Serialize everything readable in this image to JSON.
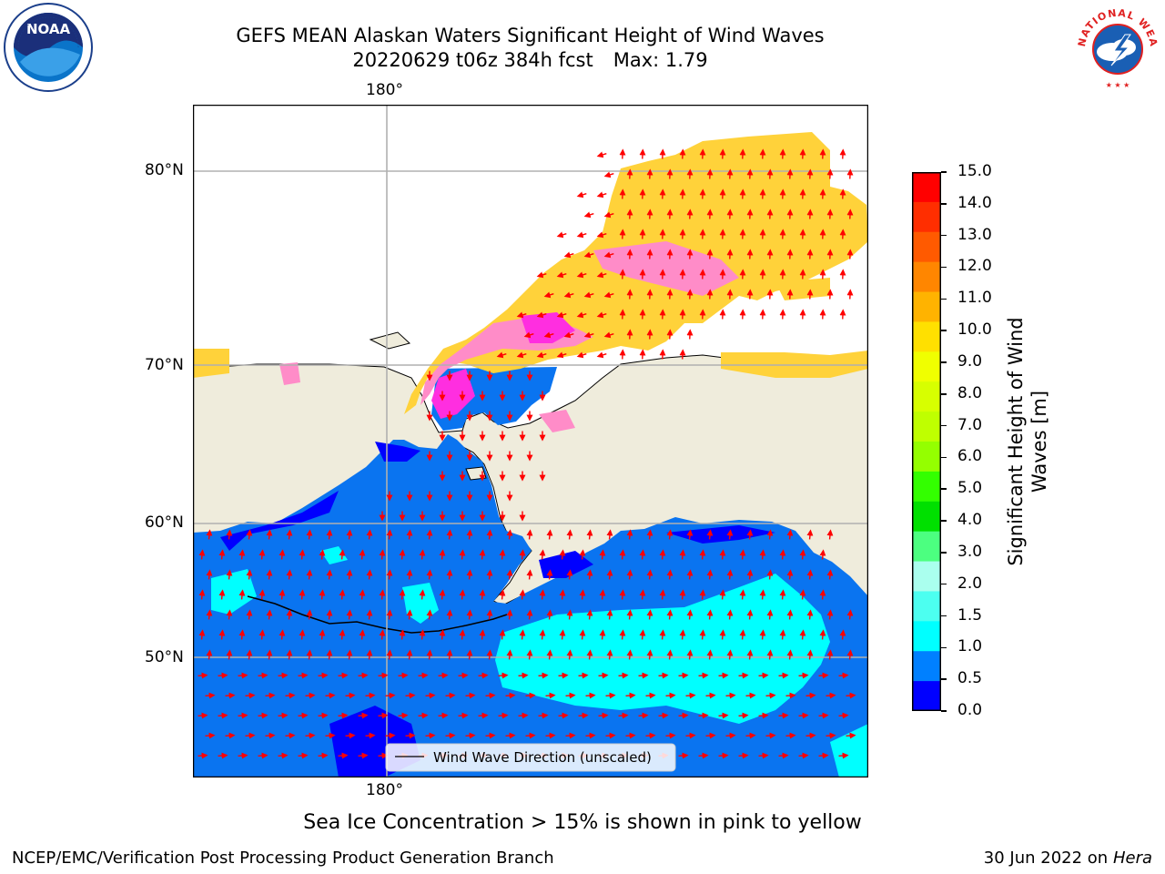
{
  "title": {
    "line1": "GEFS MEAN Alaskan Waters Significant Height of Wind Waves",
    "line2_date": "20220629 t06z 384h fcst",
    "line2_max": "Max: 1.79"
  },
  "map": {
    "lon_label_top": "180°",
    "lon_label_bottom": "180°",
    "lat_labels": [
      "80°N",
      "70°N",
      "60°N",
      "50°N"
    ],
    "legend_label": "Wind Wave Direction (unscaled)",
    "land_color": "#efecdc",
    "arrow_color": "#ff0000"
  },
  "colorbar": {
    "title": "Significant Height of Wind Waves [m]",
    "title_line1": "Significant Height of Wind",
    "title_line2": "Waves [m]",
    "ticks": [
      "15.0",
      "14.0",
      "13.0",
      "12.0",
      "11.0",
      "10.0",
      "9.0",
      "8.0",
      "7.0",
      "6.0",
      "5.0",
      "4.0",
      "3.0",
      "2.0",
      "1.5",
      "1.0",
      "0.5",
      "0.0"
    ],
    "colors_top_to_bottom": [
      "#ff0000",
      "#ff2e00",
      "#ff5a00",
      "#ff8600",
      "#ffb300",
      "#ffe000",
      "#f0ff00",
      "#d7ff00",
      "#bfff00",
      "#94ff00",
      "#33ff00",
      "#00e000",
      "#4cff80",
      "#aaffee",
      "#4cfff0",
      "#00ffff",
      "#0080ff",
      "#0000ff"
    ]
  },
  "caption": "Sea Ice Concentration > 15% is shown in pink to yellow",
  "footer": {
    "left": "NCEP/EMC/Verification Post Processing Product Generation Branch",
    "right_date": "30 Jun 2022 on",
    "right_host": "Hera"
  },
  "logos": {
    "noaa_text": "NOAA",
    "nws_text": "NATIONAL WEATHER SERVICE"
  }
}
